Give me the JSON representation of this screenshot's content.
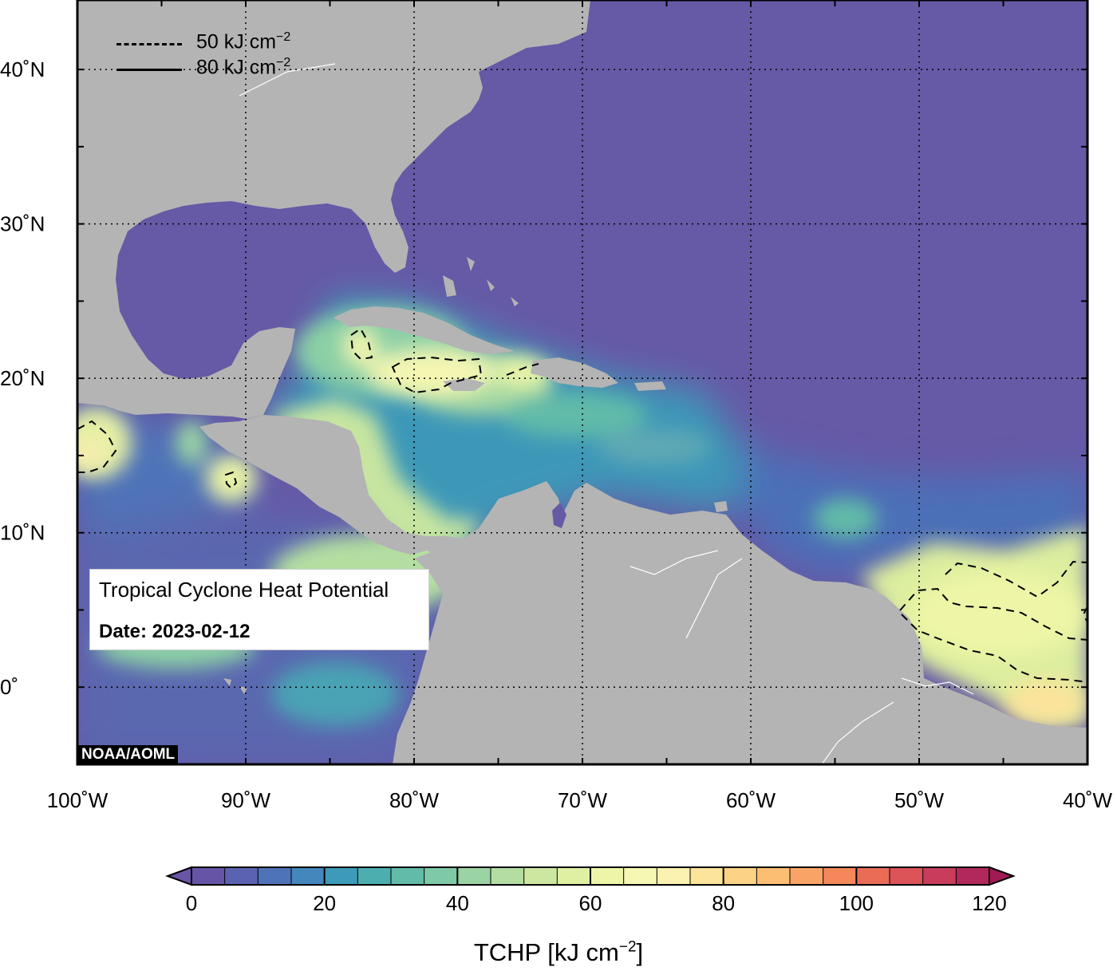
{
  "title": "Tropical Cyclone Heat Potential",
  "date_label": "Date: 2023-02-12",
  "credit": "NOAA/AOML",
  "legend": [
    {
      "style": "dashed",
      "text": "50 kJ cm",
      "sup": "−2"
    },
    {
      "style": "solid",
      "text": "80 kJ cm",
      "sup": "−2"
    }
  ],
  "axes": {
    "lon_ticks": [
      {
        "value": -100,
        "label": "100˚W"
      },
      {
        "value": -90,
        "label": "90˚W"
      },
      {
        "value": -80,
        "label": "80˚W"
      },
      {
        "value": -70,
        "label": "70˚W"
      },
      {
        "value": -60,
        "label": "60˚W"
      },
      {
        "value": -50,
        "label": "50˚W"
      },
      {
        "value": -40,
        "label": "40˚W"
      }
    ],
    "lat_ticks": [
      {
        "value": 40,
        "label": "40˚N"
      },
      {
        "value": 30,
        "label": "30˚N"
      },
      {
        "value": 20,
        "label": "20˚N"
      },
      {
        "value": 10,
        "label": "10˚N"
      },
      {
        "value": 0,
        "label": "0˚"
      }
    ],
    "lon_range": [
      -100,
      -40
    ],
    "lat_range": [
      -5,
      44.5
    ]
  },
  "colorbar": {
    "title": "TCHP [kJ cm",
    "title_sup": "−2",
    "title_end": "]",
    "ticks": [
      "0",
      "20",
      "40",
      "60",
      "80",
      "100",
      "120"
    ],
    "min": 0,
    "max": 120,
    "step": 5,
    "colors": [
      "#6655a6",
      "#5b62b0",
      "#4f73b8",
      "#4487bd",
      "#3d9ab9",
      "#4daeb0",
      "#62bba8",
      "#7ec9a6",
      "#9ad3a4",
      "#b4dea1",
      "#cde7a0",
      "#e0f0a2",
      "#eef5a8",
      "#f6f7b3",
      "#fbf1b0",
      "#fce49b",
      "#fcd386",
      "#fbbe73",
      "#f9a466",
      "#f4885a",
      "#ea6c55",
      "#dc5358",
      "#c93c5b",
      "#b2275c"
    ],
    "under_color": "#6a54a6",
    "over_color": "#a21a55"
  },
  "colors": {
    "land": "#b4b4b4",
    "ocean_low": "#6659a6",
    "frame": "#000000"
  }
}
